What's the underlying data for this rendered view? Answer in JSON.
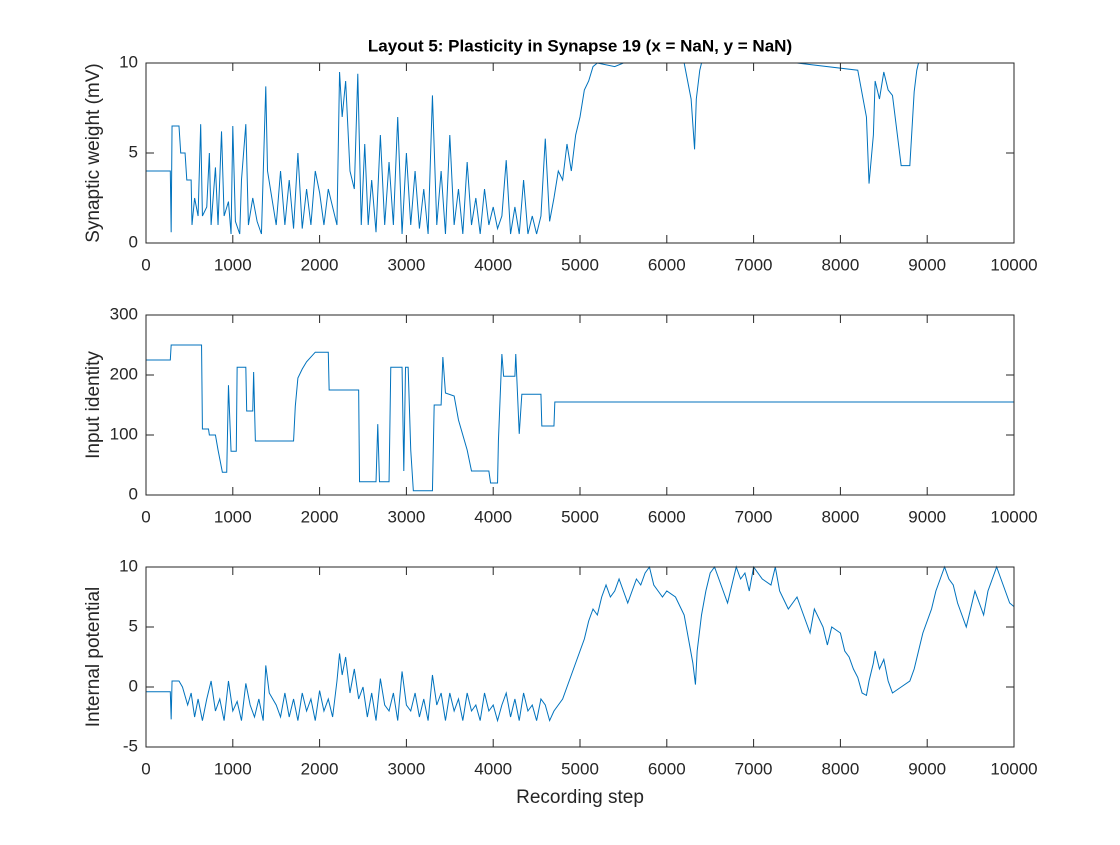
{
  "chart_data": [
    {
      "type": "line",
      "title": "Layout 5: Plasticity in Synapse 19 (x = NaN, y = NaN)",
      "ylabel": "Synaptic weight (mV)",
      "xlim": [
        0,
        10000
      ],
      "ylim": [
        0,
        10
      ],
      "xticks": [
        0,
        1000,
        2000,
        3000,
        4000,
        5000,
        6000,
        7000,
        8000,
        9000,
        10000
      ],
      "yticks": [
        0,
        5,
        10
      ],
      "series": [
        {
          "color": "#0072bd",
          "x": [
            0,
            280,
            290,
            300,
            380,
            400,
            450,
            470,
            520,
            530,
            560,
            600,
            630,
            650,
            700,
            730,
            750,
            800,
            830,
            870,
            900,
            950,
            980,
            1000,
            1030,
            1080,
            1100,
            1150,
            1180,
            1230,
            1280,
            1330,
            1380,
            1400,
            1460,
            1500,
            1550,
            1600,
            1650,
            1700,
            1750,
            1800,
            1850,
            1900,
            1950,
            2000,
            2050,
            2100,
            2200,
            2230,
            2260,
            2300,
            2350,
            2400,
            2440,
            2480,
            2520,
            2560,
            2600,
            2650,
            2700,
            2750,
            2800,
            2850,
            2900,
            2950,
            3000,
            3050,
            3100,
            3150,
            3200,
            3250,
            3300,
            3350,
            3400,
            3450,
            3500,
            3550,
            3600,
            3650,
            3700,
            3750,
            3800,
            3850,
            3900,
            3950,
            4000,
            4050,
            4100,
            4150,
            4200,
            4250,
            4300,
            4350,
            4400,
            4450,
            4500,
            4550,
            4600,
            4650,
            4700,
            4750,
            4800,
            4850,
            4900,
            4950,
            5000,
            5050,
            5100,
            5150,
            5200,
            5400,
            5500,
            6200,
            6280,
            6320,
            6340,
            6380,
            6400,
            7500,
            8200,
            8300,
            8330,
            8380,
            8400,
            8450,
            8500,
            8550,
            8600,
            8700,
            8800,
            8850,
            8880,
            8900,
            10000
          ],
          "values": [
            4,
            4,
            0.6,
            6.5,
            6.5,
            5,
            5,
            3.5,
            3.5,
            1,
            2.5,
            1.5,
            6.6,
            1.5,
            2,
            5,
            1,
            4.2,
            1,
            6.2,
            1.5,
            2.3,
            0.5,
            6.5,
            1.2,
            0.5,
            3.5,
            6.6,
            1,
            2.5,
            1.2,
            0.5,
            8.7,
            4,
            2.2,
            1,
            4,
            1,
            3.5,
            0.8,
            5,
            0.8,
            3,
            1,
            4,
            2.8,
            1,
            3,
            1,
            9.5,
            7,
            9,
            4,
            3,
            9.4,
            1,
            5.5,
            1,
            3.5,
            0.6,
            6,
            1,
            4.5,
            1,
            7,
            0.5,
            5,
            1,
            4,
            0.8,
            3,
            0.5,
            8.2,
            1,
            4,
            0.5,
            6,
            1,
            3,
            0.5,
            4.5,
            1,
            2.5,
            0.5,
            3,
            1,
            2,
            0.8,
            1.5,
            4.6,
            0.5,
            2,
            0.5,
            3.5,
            0.5,
            1.5,
            0.5,
            1.5,
            5.8,
            1.2,
            2.5,
            4,
            3.5,
            5.5,
            4,
            6,
            7,
            8.5,
            9,
            9.8,
            10,
            9.8,
            10,
            10,
            8,
            5.2,
            8,
            9.6,
            10,
            10,
            9.6,
            7,
            3.3,
            6,
            9,
            8,
            9.5,
            8.5,
            8.2,
            4.3,
            4.3,
            8.4,
            9.6,
            10,
            10
          ]
        },
        {
          "color": "#7e2f8e",
          "x": [
            0,
            10000
          ],
          "values": [
            0,
            0
          ]
        }
      ]
    },
    {
      "type": "line",
      "ylabel": "Input identity",
      "xlim": [
        0,
        10000
      ],
      "ylim": [
        0,
        300
      ],
      "xticks": [
        0,
        1000,
        2000,
        3000,
        4000,
        5000,
        6000,
        7000,
        8000,
        9000,
        10000
      ],
      "yticks": [
        0,
        100,
        200,
        300
      ],
      "series": [
        {
          "color": "#0072bd",
          "x": [
            0,
            280,
            290,
            640,
            650,
            720,
            730,
            800,
            830,
            880,
            930,
            950,
            980,
            1040,
            1050,
            1150,
            1160,
            1230,
            1240,
            1260,
            1700,
            1720,
            1750,
            1800,
            1850,
            1950,
            2100,
            2110,
            2450,
            2460,
            2650,
            2670,
            2690,
            2800,
            2820,
            2950,
            2970,
            2990,
            3020,
            3050,
            3080,
            3300,
            3320,
            3400,
            3420,
            3450,
            3550,
            3600,
            3700,
            3750,
            3950,
            3970,
            4050,
            4060,
            4100,
            4120,
            4250,
            4260,
            4300,
            4330,
            4450,
            4550,
            4560,
            4700,
            4710,
            10000
          ],
          "values": [
            225,
            225,
            250,
            250,
            110,
            110,
            100,
            100,
            75,
            38,
            38,
            183,
            73,
            73,
            213,
            213,
            140,
            140,
            205,
            90,
            90,
            148,
            195,
            210,
            222,
            238,
            238,
            175,
            175,
            22,
            22,
            118,
            22,
            22,
            213,
            213,
            40,
            213,
            213,
            75,
            7,
            7,
            150,
            150,
            230,
            170,
            165,
            125,
            75,
            40,
            40,
            20,
            20,
            90,
            235,
            198,
            198,
            235,
            102,
            168,
            168,
            168,
            115,
            115,
            155,
            155
          ]
        }
      ]
    },
    {
      "type": "line",
      "ylabel": "Internal potential",
      "xlabel": "Recording step",
      "xlim": [
        0,
        10000
      ],
      "ylim": [
        -5,
        10
      ],
      "xticks": [
        0,
        1000,
        2000,
        3000,
        4000,
        5000,
        6000,
        7000,
        8000,
        9000,
        10000
      ],
      "yticks": [
        -5,
        0,
        5,
        10
      ],
      "series": [
        {
          "color": "#0072bd",
          "x": [
            0,
            280,
            290,
            300,
            380,
            420,
            480,
            520,
            560,
            600,
            650,
            700,
            750,
            800,
            850,
            900,
            950,
            1000,
            1050,
            1100,
            1150,
            1200,
            1250,
            1300,
            1350,
            1380,
            1420,
            1500,
            1550,
            1600,
            1650,
            1700,
            1750,
            1800,
            1850,
            1900,
            1950,
            2000,
            2050,
            2100,
            2150,
            2200,
            2230,
            2260,
            2300,
            2350,
            2400,
            2450,
            2500,
            2550,
            2600,
            2650,
            2700,
            2750,
            2800,
            2850,
            2900,
            2950,
            3000,
            3050,
            3100,
            3150,
            3200,
            3250,
            3300,
            3350,
            3400,
            3450,
            3500,
            3550,
            3600,
            3650,
            3700,
            3750,
            3800,
            3850,
            3900,
            3950,
            4000,
            4050,
            4100,
            4150,
            4200,
            4250,
            4300,
            4350,
            4400,
            4450,
            4500,
            4550,
            4600,
            4650,
            4700,
            4750,
            4800,
            4850,
            4900,
            4950,
            5000,
            5050,
            5100,
            5150,
            5200,
            5250,
            5300,
            5350,
            5400,
            5450,
            5500,
            5550,
            5600,
            5650,
            5700,
            5750,
            5800,
            5850,
            5900,
            5950,
            6000,
            6100,
            6200,
            6250,
            6300,
            6330,
            6350,
            6400,
            6450,
            6500,
            6550,
            6600,
            6650,
            6700,
            6750,
            6800,
            6850,
            6900,
            6950,
            7000,
            7100,
            7200,
            7250,
            7300,
            7400,
            7500,
            7600,
            7650,
            7700,
            7800,
            7850,
            7900,
            8000,
            8050,
            8100,
            8150,
            8200,
            8250,
            8300,
            8330,
            8380,
            8400,
            8450,
            8500,
            8550,
            8600,
            8700,
            8800,
            8850,
            8900,
            8950,
            9000,
            9050,
            9100,
            9150,
            9200,
            9250,
            9300,
            9350,
            9400,
            9450,
            9500,
            9550,
            9600,
            9650,
            9700,
            9750,
            9800,
            9850,
            9900,
            9950,
            10000
          ],
          "values": [
            -0.4,
            -0.4,
            -2.7,
            0.5,
            0.5,
            0,
            -1.5,
            -0.5,
            -2.5,
            -1,
            -2.8,
            -1,
            0.5,
            -2,
            -1,
            -2.8,
            0.5,
            -2,
            -1.2,
            -2.8,
            0.3,
            -1.5,
            -2.5,
            -1,
            -2.8,
            1.8,
            -0.5,
            -1.5,
            -2.5,
            -0.5,
            -2.5,
            -1,
            -2.8,
            -0.5,
            -2,
            -1,
            -2.8,
            -0.3,
            -2,
            -1,
            -2.5,
            0.5,
            2.8,
            1,
            2.5,
            -0.5,
            1.5,
            -1,
            0,
            -2.5,
            -0.5,
            -2.8,
            0.7,
            -1.5,
            -2,
            -0.5,
            -2.8,
            1.3,
            -1.5,
            -2,
            -0.5,
            -2.5,
            -1,
            -2.8,
            1,
            -1.5,
            -0.5,
            -2.8,
            -0.5,
            -2,
            -1,
            -2.8,
            -0.5,
            -2,
            -1.5,
            -2.8,
            -0.5,
            -2,
            -1.5,
            -2.8,
            -1.5,
            -0.5,
            -2.5,
            -1,
            -2.8,
            -0.5,
            -2,
            -1.5,
            -2.8,
            -1,
            -1.5,
            -2.8,
            -2,
            -1.5,
            -1,
            0,
            1,
            2,
            3,
            4,
            5.5,
            6.5,
            6,
            7.5,
            8.5,
            7.5,
            8,
            9,
            8,
            7,
            8,
            9,
            8.5,
            9.5,
            10,
            8.5,
            8,
            7.5,
            8,
            7.5,
            6,
            4,
            2,
            0.2,
            3,
            6,
            8,
            9.5,
            10,
            9,
            8,
            7,
            8.5,
            10,
            9,
            9.5,
            8,
            10,
            9,
            8.5,
            10,
            8,
            6.5,
            7.5,
            5.5,
            4.5,
            6.5,
            5,
            3.5,
            5,
            4.5,
            3,
            2.5,
            1.5,
            0.8,
            -0.5,
            -0.7,
            0.5,
            2,
            3,
            1.5,
            2.3,
            0.5,
            -0.5,
            0,
            0.5,
            1.5,
            3,
            4.5,
            5.5,
            6.5,
            8,
            9,
            10,
            9,
            8.5,
            7,
            6,
            5,
            6.5,
            8,
            7,
            6,
            8,
            9,
            10,
            9,
            8,
            7,
            6.7
          ]
        }
      ]
    }
  ]
}
